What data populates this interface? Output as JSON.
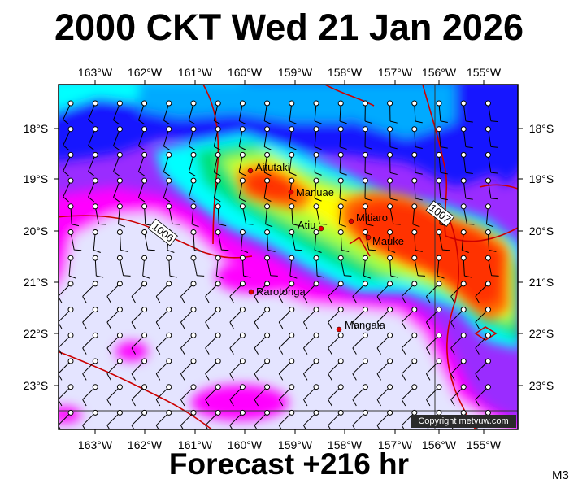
{
  "title": "2000 CKT Wed 21 Jan 2026",
  "forecast_label": "Forecast +216 hr",
  "model_code": "M3",
  "copyright": "Copyright metvuw.com",
  "longitude_labels": [
    "163°W",
    "162°W",
    "161°W",
    "160°W",
    "159°W",
    "158°W",
    "157°W",
    "156°W",
    "155°W"
  ],
  "latitude_labels": [
    "18°S",
    "19°S",
    "20°S",
    "21°S",
    "22°S",
    "23°S"
  ],
  "places": [
    {
      "name": "Aitutaki"
    },
    {
      "name": "Manuae"
    },
    {
      "name": "Atiu"
    },
    {
      "name": "Mitiaro"
    },
    {
      "name": "Mauke"
    },
    {
      "name": "Rarotonga"
    },
    {
      "name": "Mangaia"
    }
  ],
  "isobars": [
    {
      "value": "1006"
    },
    {
      "value": "1007"
    }
  ],
  "colors": {
    "rain_light": "#e4e4ff",
    "rain_magenta": "#ff00ff",
    "rain_purple": "#9a2cff",
    "rain_blue": "#1414ff",
    "rain_lightblue": "#00aaff",
    "rain_cyan": "#00ffff",
    "rain_green": "#00e07a",
    "rain_yellowgreen": "#aaff3a",
    "rain_yellow": "#ffff00",
    "rain_orange": "#ff6a00",
    "rain_red": "#ff3300",
    "isobar": "#cc0000"
  }
}
